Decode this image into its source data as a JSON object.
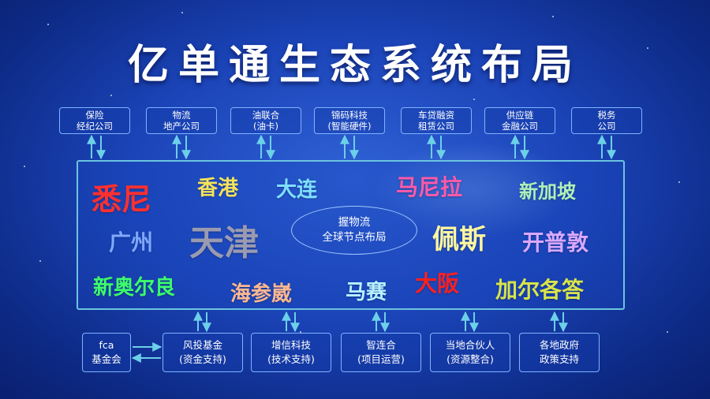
{
  "title": "亿单通生态系统布局",
  "top_nodes": [
    {
      "line1": "保险",
      "line2": "经纪公司"
    },
    {
      "line1": "物流",
      "line2": "地产公司"
    },
    {
      "line1": "油联合",
      "line2": "(油卡)"
    },
    {
      "line1": "锦码科技",
      "line2": "(智能硬件)"
    },
    {
      "line1": "车贷融资",
      "line2": "租赁公司"
    },
    {
      "line1": "供应链",
      "line2": "金融公司"
    },
    {
      "line1": "税务",
      "line2": "公司"
    }
  ],
  "center": {
    "line1": "握物流",
    "line2": "全球节点布局"
  },
  "cities": {
    "sydney": "悉尼",
    "hongkong": "香港",
    "dalian": "大连",
    "manila": "马尼拉",
    "singapore": "新加坡",
    "guangzhou": "广州",
    "tianjin": "天津",
    "perth": "佩斯",
    "capetown": "开普敦",
    "neworleans": "新奥尔良",
    "vladivostok": "海参崴",
    "marseille": "马赛",
    "osaka": "大阪",
    "calgary": "加尔各答"
  },
  "colors": {
    "sydney": "#ff3030",
    "hongkong": "#f4e35a",
    "dalian": "#7fe0ff",
    "manila": "#ff5aa8",
    "singapore": "#aef0b8",
    "guangzhou": "#7fa8ff",
    "tianjin": "#9a9ab0",
    "perth": "#fff7a0",
    "capetown": "#d9a8ff",
    "neworleans": "#3dff6a",
    "vladivostok": "#ffb890",
    "marseille": "#b8f2ff",
    "osaka": "#ff2020",
    "calgary": "#d8e44a"
  },
  "bottom_nodes": {
    "fca": {
      "line1": "fca",
      "line2": "基金会"
    },
    "items": [
      {
        "line1": "风投基金",
        "line2": "(资金支持)"
      },
      {
        "line1": "增信科技",
        "line2": "(技术支持)"
      },
      {
        "line1": "智连合",
        "line2": "(项目运营)"
      },
      {
        "line1": "当地合伙人",
        "line2": "(资源整合)"
      },
      {
        "line1": "各地政府",
        "line2": "政策支持"
      }
    ]
  }
}
